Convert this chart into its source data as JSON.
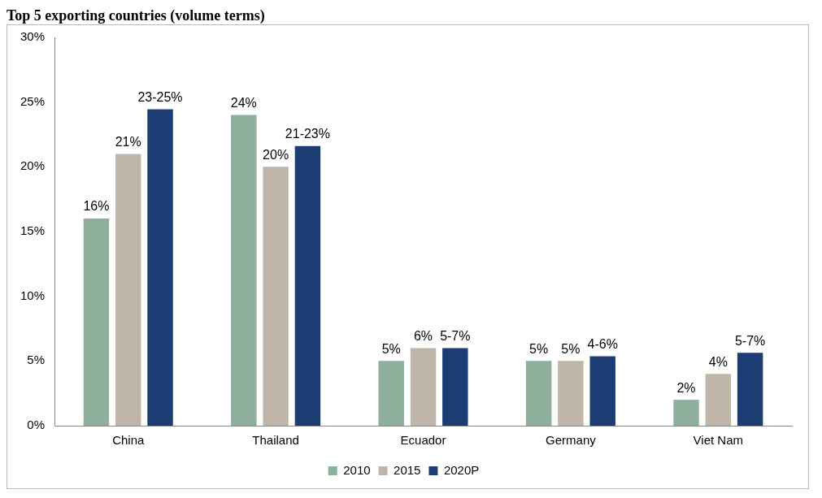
{
  "chart_data": {
    "type": "bar",
    "title": "Top 5 exporting countries (volume terms)",
    "categories": [
      "China",
      "Thailand",
      "Ecuador",
      "Germany",
      "Viet Nam"
    ],
    "series": [
      {
        "name": "2010",
        "color": "#8daf9c",
        "values": [
          16,
          24,
          5,
          5,
          2
        ],
        "value_labels": [
          "16%",
          "24%",
          "5%",
          "5%",
          "2%"
        ]
      },
      {
        "name": "2015",
        "color": "#bfb6a9",
        "values": [
          21,
          20,
          6,
          5,
          4
        ],
        "value_labels": [
          "21%",
          "20%",
          "6%",
          "5%",
          "4%"
        ]
      },
      {
        "name": "2020P",
        "color": "#1c3d74",
        "values": [
          24.45,
          21.6,
          6,
          5.36,
          5.63
        ]
      }
    ],
    "annotations": [
      "23-25%",
      "21-23%",
      "5-7%",
      "4-6%",
      "5-7%"
    ],
    "ylim": [
      0,
      30
    ],
    "yticks": [
      {
        "value": 0,
        "label": "0%"
      },
      {
        "value": 5,
        "label": "5%"
      },
      {
        "value": 10,
        "label": "10%"
      },
      {
        "value": 15,
        "label": "15%"
      },
      {
        "value": 20,
        "label": "20%"
      },
      {
        "value": 25,
        "label": "25%"
      },
      {
        "value": 30,
        "label": "30%"
      }
    ],
    "grid": false,
    "legend": "bottom"
  }
}
